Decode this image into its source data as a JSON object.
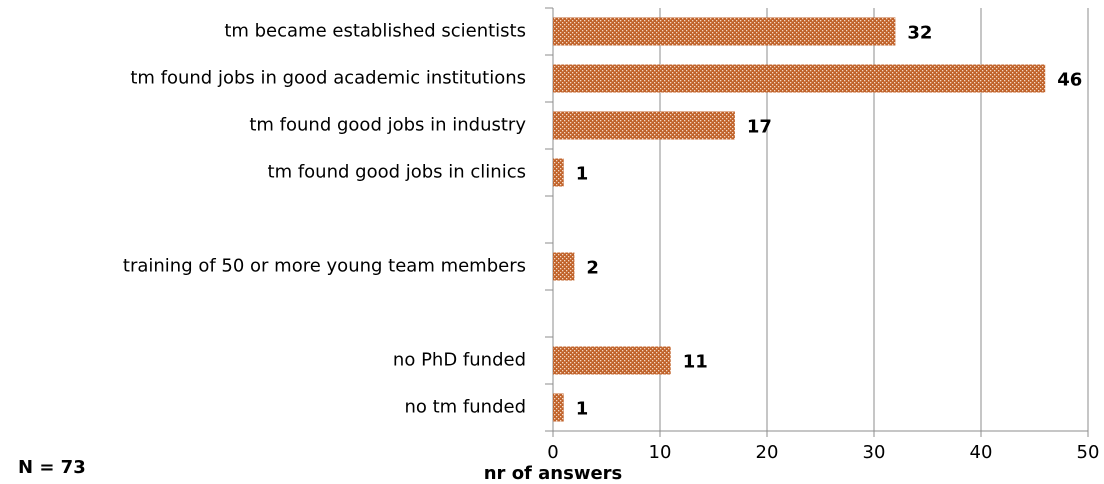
{
  "chart_data": {
    "type": "hbar",
    "categories": [
      "tm became established scientists",
      "tm found jobs in good academic institutions",
      "tm found good jobs in industry",
      "tm found good jobs in clinics",
      null,
      "training of 50 or more young team members",
      null,
      "no PhD funded",
      "no tm funded"
    ],
    "values": [
      32,
      46,
      17,
      1,
      null,
      2,
      null,
      11,
      1
    ],
    "color": "#c0622a",
    "xlim": [
      0,
      50
    ],
    "xticks": [
      0,
      10,
      20,
      30,
      40,
      50
    ],
    "grid": true,
    "xlabel": "nr of answers",
    "annotation": "N = 73"
  }
}
